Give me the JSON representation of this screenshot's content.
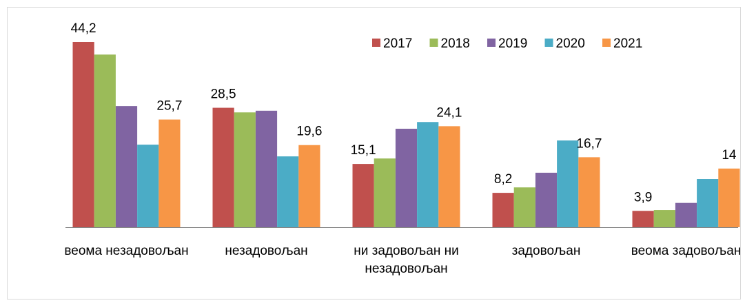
{
  "chart_data": {
    "type": "bar",
    "categories": [
      "веома незадовољан",
      "незадовољан",
      "ни задовољан ни незадовољан",
      "задовољан",
      "веома задовољан"
    ],
    "series": [
      {
        "name": "2017",
        "color": "#c0504d",
        "values": [
          44.2,
          28.5,
          15.1,
          8.2,
          3.9
        ],
        "value_labels": [
          "44,2",
          "28,5",
          "15,1",
          "8,2",
          "3,9"
        ]
      },
      {
        "name": "2018",
        "color": "#9bbb59",
        "values": [
          41.2,
          27.4,
          16.4,
          9.5,
          4.1
        ]
      },
      {
        "name": "2019",
        "color": "#8064a2",
        "values": [
          28.9,
          27.8,
          23.5,
          13.0,
          5.8
        ]
      },
      {
        "name": "2020",
        "color": "#4bacc6",
        "values": [
          19.7,
          16.9,
          25.1,
          20.7,
          11.5
        ]
      },
      {
        "name": "2021",
        "color": "#f79646",
        "values": [
          25.7,
          19.6,
          24.1,
          16.7,
          14
        ],
        "value_labels": [
          "25,7",
          "19,6",
          "24,1",
          "16,7",
          "14"
        ]
      }
    ],
    "legend": "top-right",
    "grid": false
  }
}
